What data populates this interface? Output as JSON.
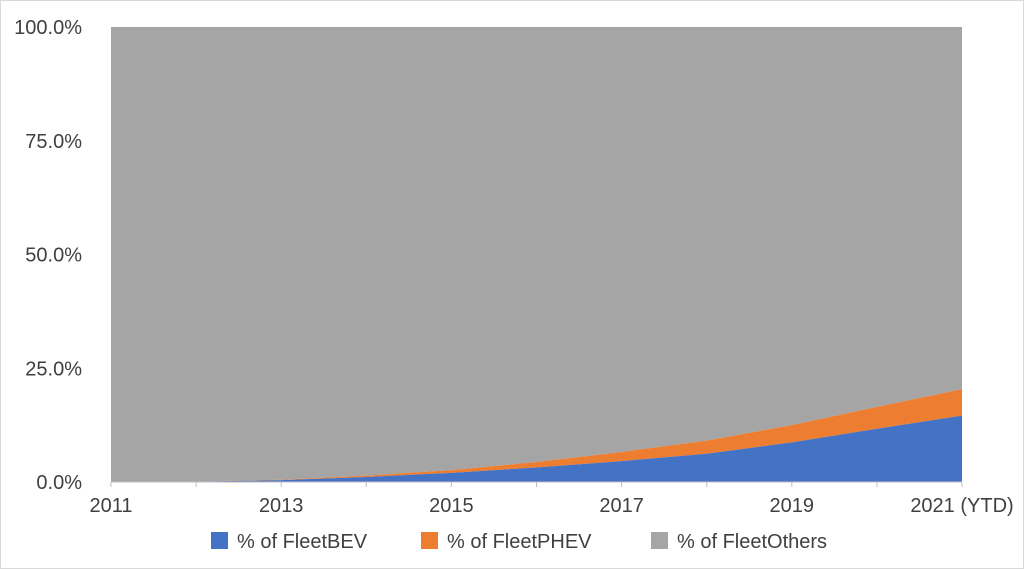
{
  "chart_data": {
    "type": "area",
    "stacked": true,
    "percent": true,
    "x": [
      "2011",
      "2012",
      "2013",
      "2014",
      "2015",
      "2016",
      "2017",
      "2018",
      "2019",
      "2020",
      "2021 (YTD)"
    ],
    "x_tick_labels": [
      "2011",
      "2013",
      "2015",
      "2017",
      "2019",
      "2021 (YTD)"
    ],
    "y_tick_labels": [
      "0.0%",
      "25.0%",
      "50.0%",
      "75.0%",
      "100.0%"
    ],
    "ylim": [
      0,
      100
    ],
    "legend_position": "bottom",
    "grid": false,
    "series": [
      {
        "name": "% of FleetBEV",
        "color": "#4472C4",
        "values": [
          0.0,
          0.1,
          0.4,
          1.1,
          2.0,
          3.2,
          4.6,
          6.2,
          8.7,
          11.7,
          14.6
        ]
      },
      {
        "name": "% of FleetPHEV",
        "color": "#ED7D31",
        "values": [
          0.0,
          0.0,
          0.1,
          0.3,
          0.6,
          1.2,
          2.0,
          2.9,
          3.8,
          4.8,
          5.8
        ]
      },
      {
        "name": "% of FleetOthers",
        "color": "#A5A5A5",
        "values": [
          100.0,
          99.9,
          99.5,
          98.6,
          97.4,
          95.6,
          93.4,
          90.9,
          87.5,
          83.5,
          79.6
        ]
      }
    ]
  }
}
